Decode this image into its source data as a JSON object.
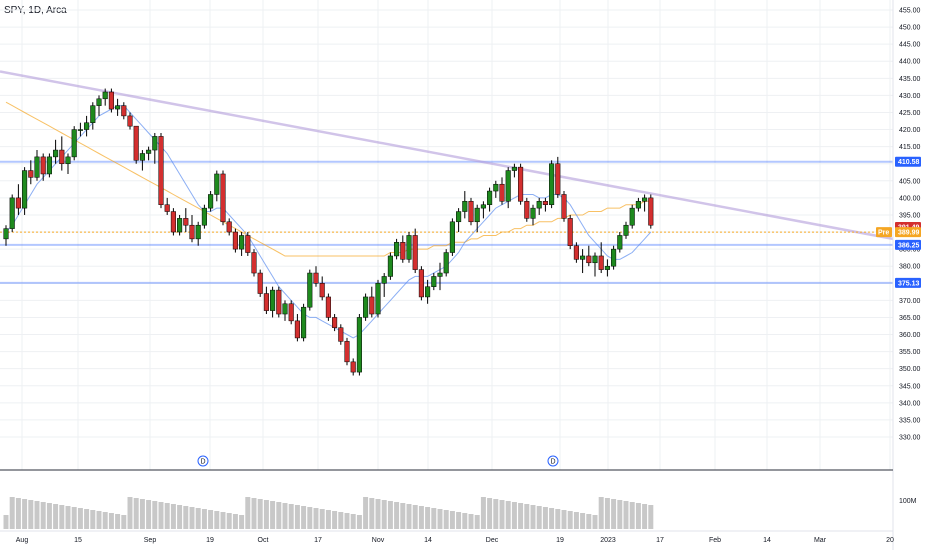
{
  "symbol": "SPY, 1D, Arca",
  "colors": {
    "up": "#1e8a1e",
    "down": "#d32f2f",
    "line_blue": "#2962ff",
    "ma_fast": "#5b8def",
    "ma_slow": "#f5a623",
    "trendline": "#b39ddb",
    "volume": "#c8c8c8",
    "grid": "#eef0f3"
  },
  "chart_data": {
    "type": "candlestick",
    "y_ticks": [
      "455.00",
      "450.00",
      "445.00",
      "440.00",
      "435.00",
      "430.00",
      "425.00",
      "420.00",
      "415.00",
      "410.00",
      "405.00",
      "400.00",
      "395.00",
      "390.00",
      "385.00",
      "380.00",
      "375.00",
      "370.00",
      "365.00",
      "360.00",
      "355.00",
      "350.00",
      "345.00",
      "340.00",
      "335.00",
      "330.00"
    ],
    "ylim": [
      330,
      457
    ],
    "x_labels": [
      "Aug",
      "15",
      "Sep",
      "19",
      "Oct",
      "17",
      "Nov",
      "14",
      "Dec",
      "19",
      "2023",
      "17",
      "Feb",
      "14",
      "Mar",
      "20"
    ],
    "price_labels": {
      "res": "410.58",
      "last": "391.49",
      "pre": "389.99",
      "pre_tag": "Pre",
      "sup1": "386.25",
      "sup2": "375.13"
    },
    "volume_label": "100M",
    "dividend_marker": "D",
    "horizontal_lines": [
      410.58,
      386.25,
      375.13
    ],
    "trendline": {
      "start": 437,
      "end": 388
    },
    "candles": [
      [
        388,
        392,
        386,
        391
      ],
      [
        391,
        401,
        390,
        400
      ],
      [
        400,
        404,
        395,
        397
      ],
      [
        397,
        409,
        395,
        408
      ],
      [
        408,
        411,
        404,
        406
      ],
      [
        406,
        414,
        405,
        412
      ],
      [
        412,
        413,
        405,
        407
      ],
      [
        407,
        413,
        406,
        412
      ],
      [
        412,
        417,
        410,
        414
      ],
      [
        414,
        418,
        408,
        410
      ],
      [
        410,
        413,
        407,
        412
      ],
      [
        412,
        421,
        411,
        420
      ],
      [
        420,
        422,
        418,
        420
      ],
      [
        420,
        424,
        418,
        422
      ],
      [
        422,
        428,
        420,
        427
      ],
      [
        427,
        430,
        424,
        429
      ],
      [
        429,
        432,
        427,
        431
      ],
      [
        431,
        432,
        425,
        426
      ],
      [
        426,
        429,
        424,
        427
      ],
      [
        427,
        428,
        423,
        424
      ],
      [
        424,
        425,
        420,
        421
      ],
      [
        421,
        421,
        410,
        411
      ],
      [
        411,
        414,
        408,
        413
      ],
      [
        413,
        415,
        411,
        414
      ],
      [
        414,
        419,
        410,
        418
      ],
      [
        418,
        419,
        397,
        398
      ],
      [
        398,
        400,
        395,
        396
      ],
      [
        396,
        397,
        389,
        390
      ],
      [
        390,
        395,
        389,
        394
      ],
      [
        394,
        397,
        390,
        392
      ],
      [
        392,
        395,
        387,
        388
      ],
      [
        388,
        393,
        386,
        392
      ],
      [
        392,
        398,
        391,
        397
      ],
      [
        397,
        402,
        396,
        401
      ],
      [
        401,
        408,
        399,
        407
      ],
      [
        407,
        408,
        392,
        393
      ],
      [
        393,
        394,
        389,
        390
      ],
      [
        390,
        391,
        384,
        385
      ],
      [
        385,
        390,
        383,
        389
      ],
      [
        389,
        390,
        383,
        384
      ],
      [
        384,
        385,
        377,
        378
      ],
      [
        378,
        379,
        371,
        372
      ],
      [
        372,
        374,
        366,
        367
      ],
      [
        367,
        374,
        365,
        373
      ],
      [
        373,
        374,
        365,
        366
      ],
      [
        366,
        370,
        364,
        369
      ],
      [
        369,
        370,
        363,
        364
      ],
      [
        364,
        366,
        358,
        359
      ],
      [
        359,
        369,
        358,
        368
      ],
      [
        368,
        379,
        367,
        378
      ],
      [
        378,
        380,
        374,
        375
      ],
      [
        375,
        377,
        370,
        371
      ],
      [
        371,
        372,
        364,
        365
      ],
      [
        365,
        366,
        361,
        362
      ],
      [
        362,
        363,
        357,
        358
      ],
      [
        358,
        359,
        351,
        352
      ],
      [
        352,
        353,
        348,
        349
      ],
      [
        349,
        366,
        348,
        365
      ],
      [
        365,
        372,
        364,
        371
      ],
      [
        371,
        374,
        365,
        366
      ],
      [
        366,
        376,
        365,
        375
      ],
      [
        375,
        378,
        371,
        377
      ],
      [
        377,
        384,
        376,
        383
      ],
      [
        383,
        388,
        382,
        387
      ],
      [
        387,
        389,
        381,
        382
      ],
      [
        382,
        390,
        381,
        389
      ],
      [
        389,
        391,
        378,
        379
      ],
      [
        379,
        380,
        370,
        371
      ],
      [
        371,
        376,
        369,
        374
      ],
      [
        374,
        378,
        373,
        377
      ],
      [
        377,
        381,
        373,
        378
      ],
      [
        378,
        385,
        377,
        384
      ],
      [
        384,
        394,
        383,
        393
      ],
      [
        393,
        397,
        390,
        396
      ],
      [
        396,
        402,
        394,
        399
      ],
      [
        399,
        400,
        392,
        393
      ],
      [
        393,
        398,
        390,
        397
      ],
      [
        397,
        399,
        394,
        398
      ],
      [
        398,
        403,
        396,
        402
      ],
      [
        402,
        405,
        400,
        404
      ],
      [
        404,
        406,
        398,
        399
      ],
      [
        399,
        409,
        397,
        408
      ],
      [
        408,
        410,
        406,
        409
      ],
      [
        409,
        410,
        398,
        399
      ],
      [
        399,
        400,
        393,
        394
      ],
      [
        394,
        398,
        392,
        397
      ],
      [
        397,
        400,
        395,
        399
      ],
      [
        399,
        400,
        396,
        398
      ],
      [
        398,
        411,
        397,
        410
      ],
      [
        410,
        412,
        400,
        401
      ],
      [
        401,
        402,
        393,
        394
      ],
      [
        394,
        395,
        385,
        386
      ],
      [
        386,
        387,
        381,
        382
      ],
      [
        382,
        385,
        378,
        383
      ],
      [
        383,
        386,
        380,
        381
      ],
      [
        381,
        384,
        377,
        383
      ],
      [
        383,
        387,
        378,
        379
      ],
      [
        379,
        382,
        377,
        380
      ],
      [
        380,
        386,
        379,
        385
      ],
      [
        385,
        390,
        384,
        389
      ],
      [
        389,
        393,
        388,
        392
      ],
      [
        392,
        398,
        391,
        397
      ],
      [
        397,
        400,
        396,
        399
      ],
      [
        399,
        401,
        396,
        400
      ],
      [
        400,
        401,
        391,
        392
      ]
    ],
    "ma_fast": [
      390,
      392,
      395,
      398,
      401,
      404,
      406,
      408,
      410,
      412,
      414,
      416,
      418,
      420,
      422,
      424,
      425,
      426,
      427,
      427,
      425,
      423,
      421,
      419,
      417,
      415,
      413,
      410,
      407,
      404,
      401,
      398,
      396,
      396,
      397,
      397,
      395,
      393,
      391,
      389,
      386,
      383,
      380,
      377,
      374,
      372,
      370,
      368,
      366,
      365,
      365,
      364,
      363,
      362,
      361,
      360,
      359,
      360,
      362,
      364,
      366,
      368,
      370,
      372,
      374,
      376,
      377,
      377,
      377,
      378,
      379,
      380,
      382,
      384,
      387,
      389,
      391,
      393,
      395,
      397,
      398,
      399,
      400,
      401,
      401,
      401,
      400,
      400,
      401,
      401,
      400,
      398,
      395,
      392,
      389,
      387,
      385,
      383,
      382,
      382,
      383,
      384,
      386,
      388,
      390
    ],
    "ma_slow": [
      428,
      427,
      426,
      425,
      424,
      423,
      422,
      421,
      420,
      419,
      418,
      417,
      416,
      415,
      414,
      413,
      412,
      411,
      410,
      409,
      408,
      407,
      406,
      405,
      404,
      403,
      402,
      401,
      400,
      399,
      398,
      397,
      396,
      395,
      394,
      393,
      392,
      391,
      390,
      389,
      388,
      387,
      386,
      385,
      384,
      383,
      383,
      383,
      383,
      383,
      383,
      383,
      383,
      383,
      383,
      383,
      383,
      383,
      383,
      383,
      383,
      383,
      384,
      384,
      384,
      385,
      385,
      385,
      385,
      386,
      386,
      386,
      387,
      387,
      387,
      388,
      388,
      389,
      389,
      389,
      390,
      390,
      391,
      391,
      392,
      392,
      393,
      393,
      393,
      394,
      394,
      395,
      395,
      395,
      396,
      396,
      396,
      397,
      397,
      397,
      398,
      398,
      398,
      399,
      399
    ]
  }
}
